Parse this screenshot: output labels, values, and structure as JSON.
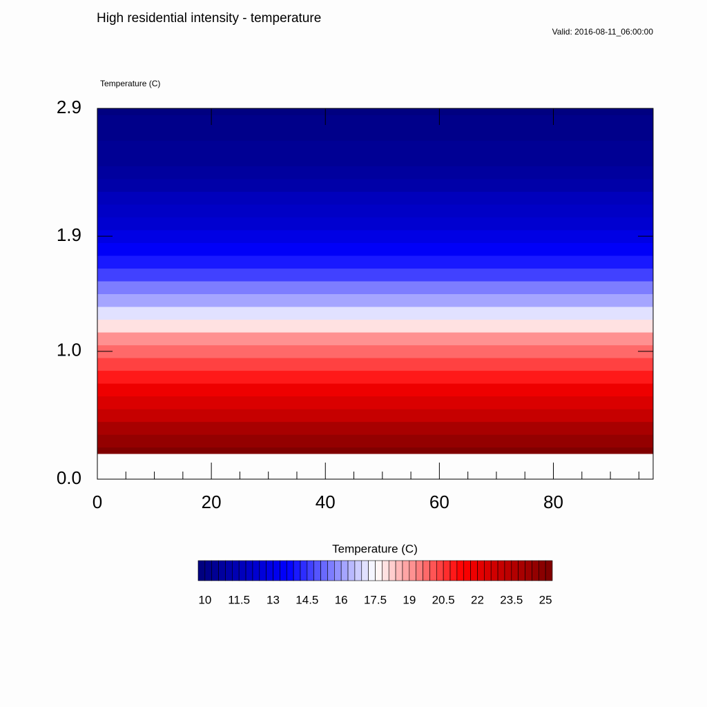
{
  "chart_data": {
    "type": "heatmap",
    "title": "High residential intensity - temperature",
    "subtitle": "Valid: 2016-08-11_06:00:00",
    "field_label": "Temperature   (C)",
    "xlim": [
      0,
      97.5
    ],
    "xticks": [
      0,
      20,
      40,
      60,
      80
    ],
    "xminorticks": [
      5,
      10,
      15,
      25,
      30,
      35,
      45,
      50,
      55,
      65,
      70,
      75,
      85,
      90,
      95
    ],
    "ylim": [
      0,
      2.9
    ],
    "yticks": [
      {
        "value": 0,
        "label": "0.0"
      },
      {
        "value": 1,
        "label": "1.0"
      },
      1.9,
      2.9
    ],
    "y": [
      0.2,
      0.3,
      0.4,
      0.5,
      0.6,
      0.7,
      0.8,
      0.9,
      1.0,
      1.1,
      1.2,
      1.3,
      1.4,
      1.5,
      1.6,
      1.7,
      1.8,
      1.9,
      2.0,
      2.1,
      2.2,
      2.3,
      2.4,
      2.5,
      2.6,
      2.7,
      2.8,
      2.9
    ],
    "values": [
      25,
      24.5,
      23.8,
      23.1,
      22.4,
      21.7,
      21.0,
      20.4,
      19.8,
      19.0,
      18.0,
      17.0,
      16.2,
      15.4,
      14.6,
      13.9,
      13.3,
      12.8,
      12.3,
      11.9,
      11.5,
      11.1,
      10.8,
      10.5,
      10.3,
      10.1,
      10.0,
      9.9
    ],
    "colormap": [
      "#000080",
      "#0000ff",
      "#ffffff",
      "#ff0000",
      "#800000"
    ],
    "colorbar_title": "Temperature  (C)",
    "levels": [
      10,
      10.3,
      10.6,
      10.9,
      11.2,
      11.5,
      11.8,
      12.1,
      12.4,
      12.7,
      13,
      13.3,
      13.6,
      13.9,
      14.2,
      14.5,
      14.8,
      15.1,
      15.4,
      15.7,
      16,
      16.3,
      16.6,
      16.9,
      17.2,
      17.5,
      17.8,
      18.1,
      18.4,
      18.7,
      19,
      19.3,
      19.6,
      19.9,
      20.2,
      20.5,
      20.8,
      21.1,
      21.4,
      21.7,
      22,
      22.3,
      22.6,
      22.9,
      23.2,
      23.5,
      23.8,
      24.1,
      24.4,
      24.7,
      25
    ],
    "colorbar_ticks": [
      10,
      11.5,
      13,
      14.5,
      16,
      17.5,
      19,
      20.5,
      22,
      23.5,
      25
    ]
  }
}
